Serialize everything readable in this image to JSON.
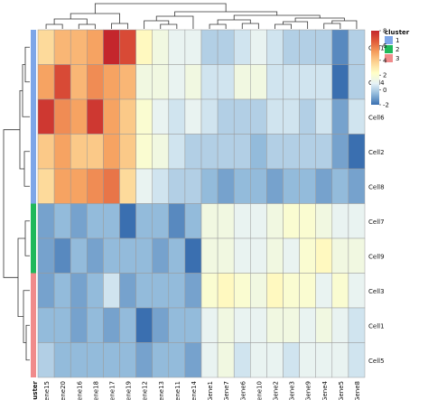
{
  "chart_data": {
    "type": "heatmap",
    "title": "",
    "rows": [
      "Cell10",
      "Cell4",
      "Cell6",
      "Cell2",
      "Cell8",
      "Cell7",
      "Cell9",
      "Cell3",
      "Cell1",
      "Cell5"
    ],
    "columns": [
      "Gene15",
      "Gene20",
      "Gene16",
      "Gene18",
      "Gene17",
      "Gene19",
      "Gene12",
      "Gene13",
      "Gene11",
      "Gene14",
      "Gene1",
      "Gene7",
      "Gene6",
      "Gene10",
      "Gene2",
      "Gene3",
      "Gene9",
      "Gene4",
      "Gene5",
      "Gene8"
    ],
    "values": [
      [
        3.5,
        4.5,
        4.5,
        5.0,
        8.0,
        7.0,
        2.5,
        1.5,
        1.0,
        1.0,
        0.0,
        0.0,
        0.5,
        1.0,
        0.5,
        0.0,
        0.0,
        0.0,
        -1.5,
        0.0
      ],
      [
        5.0,
        7.0,
        4.5,
        5.5,
        5.0,
        4.5,
        1.5,
        1.5,
        1.0,
        1.5,
        0.5,
        0.5,
        1.5,
        1.5,
        0.5,
        0.5,
        0.5,
        0.5,
        -2.0,
        0.0
      ],
      [
        7.5,
        5.5,
        5.0,
        7.5,
        5.0,
        4.0,
        2.0,
        1.0,
        0.5,
        1.0,
        0.5,
        0.0,
        0.0,
        0.0,
        0.5,
        0.5,
        0.0,
        0.5,
        -1.0,
        0.5
      ],
      [
        4.0,
        5.0,
        4.0,
        4.0,
        5.0,
        4.0,
        2.0,
        1.5,
        0.5,
        0.0,
        0.0,
        0.0,
        0.0,
        -0.5,
        0.0,
        0.0,
        0.0,
        0.0,
        -1.0,
        -2.0
      ],
      [
        3.5,
        5.0,
        5.0,
        5.5,
        6.0,
        3.5,
        1.0,
        0.5,
        0.0,
        0.0,
        -0.5,
        -1.0,
        -0.5,
        -0.5,
        -1.0,
        -0.5,
        -0.5,
        -1.0,
        -0.5,
        -1.0
      ],
      [
        -1.0,
        -0.5,
        -1.0,
        -0.5,
        -0.5,
        -2.0,
        -0.5,
        -0.5,
        -1.5,
        -0.5,
        1.5,
        1.5,
        1.0,
        1.0,
        1.5,
        2.0,
        2.0,
        1.5,
        1.0,
        1.0
      ],
      [
        -1.0,
        -1.5,
        -0.5,
        -1.0,
        -0.5,
        -0.5,
        -0.5,
        -1.0,
        -0.5,
        -2.5,
        1.5,
        1.5,
        1.0,
        1.0,
        1.5,
        1.0,
        2.0,
        2.5,
        1.5,
        1.5
      ],
      [
        -1.0,
        -0.5,
        -1.0,
        -0.5,
        0.5,
        -1.0,
        -0.5,
        -0.5,
        -0.5,
        -1.0,
        2.0,
        2.5,
        2.0,
        1.5,
        2.5,
        2.0,
        2.0,
        1.0,
        2.0,
        1.0
      ],
      [
        -0.5,
        -0.5,
        -1.0,
        -0.5,
        -1.0,
        -0.5,
        -2.0,
        -1.0,
        -0.5,
        -0.5,
        1.0,
        1.5,
        1.0,
        1.0,
        1.5,
        1.5,
        1.0,
        1.5,
        1.0,
        0.5
      ],
      [
        0.0,
        -0.5,
        -0.5,
        -0.5,
        -0.5,
        -0.5,
        -1.0,
        -0.5,
        -0.5,
        -1.0,
        1.0,
        1.5,
        0.5,
        1.0,
        1.0,
        0.5,
        1.0,
        1.0,
        1.0,
        0.5
      ]
    ],
    "row_cluster": [
      1,
      1,
      1,
      1,
      1,
      2,
      2,
      3,
      3,
      3
    ],
    "annotation_label": "cluster",
    "cluster_colors": {
      "1": "#7DA6E8",
      "2": "#1FB85A",
      "3": "#F08B8B"
    },
    "color_range": [
      -2,
      8
    ],
    "color_scale": [
      "#3A6FB0",
      "#8FB8DA",
      "#E6F2F6",
      "#FFFFC8",
      "#FDD493",
      "#F59D5C",
      "#E05A3A",
      "#C4262C"
    ],
    "colorbar_ticks": [
      8,
      6,
      4,
      2,
      0,
      -2
    ],
    "legend_title": "cluster",
    "legend_items": [
      {
        "label": "1",
        "color": "#7DA6E8"
      },
      {
        "label": "2",
        "color": "#1FB85A"
      },
      {
        "label": "3",
        "color": "#F08B8B"
      }
    ],
    "row_dendrogram": true,
    "column_dendrogram": true,
    "grid": true
  }
}
